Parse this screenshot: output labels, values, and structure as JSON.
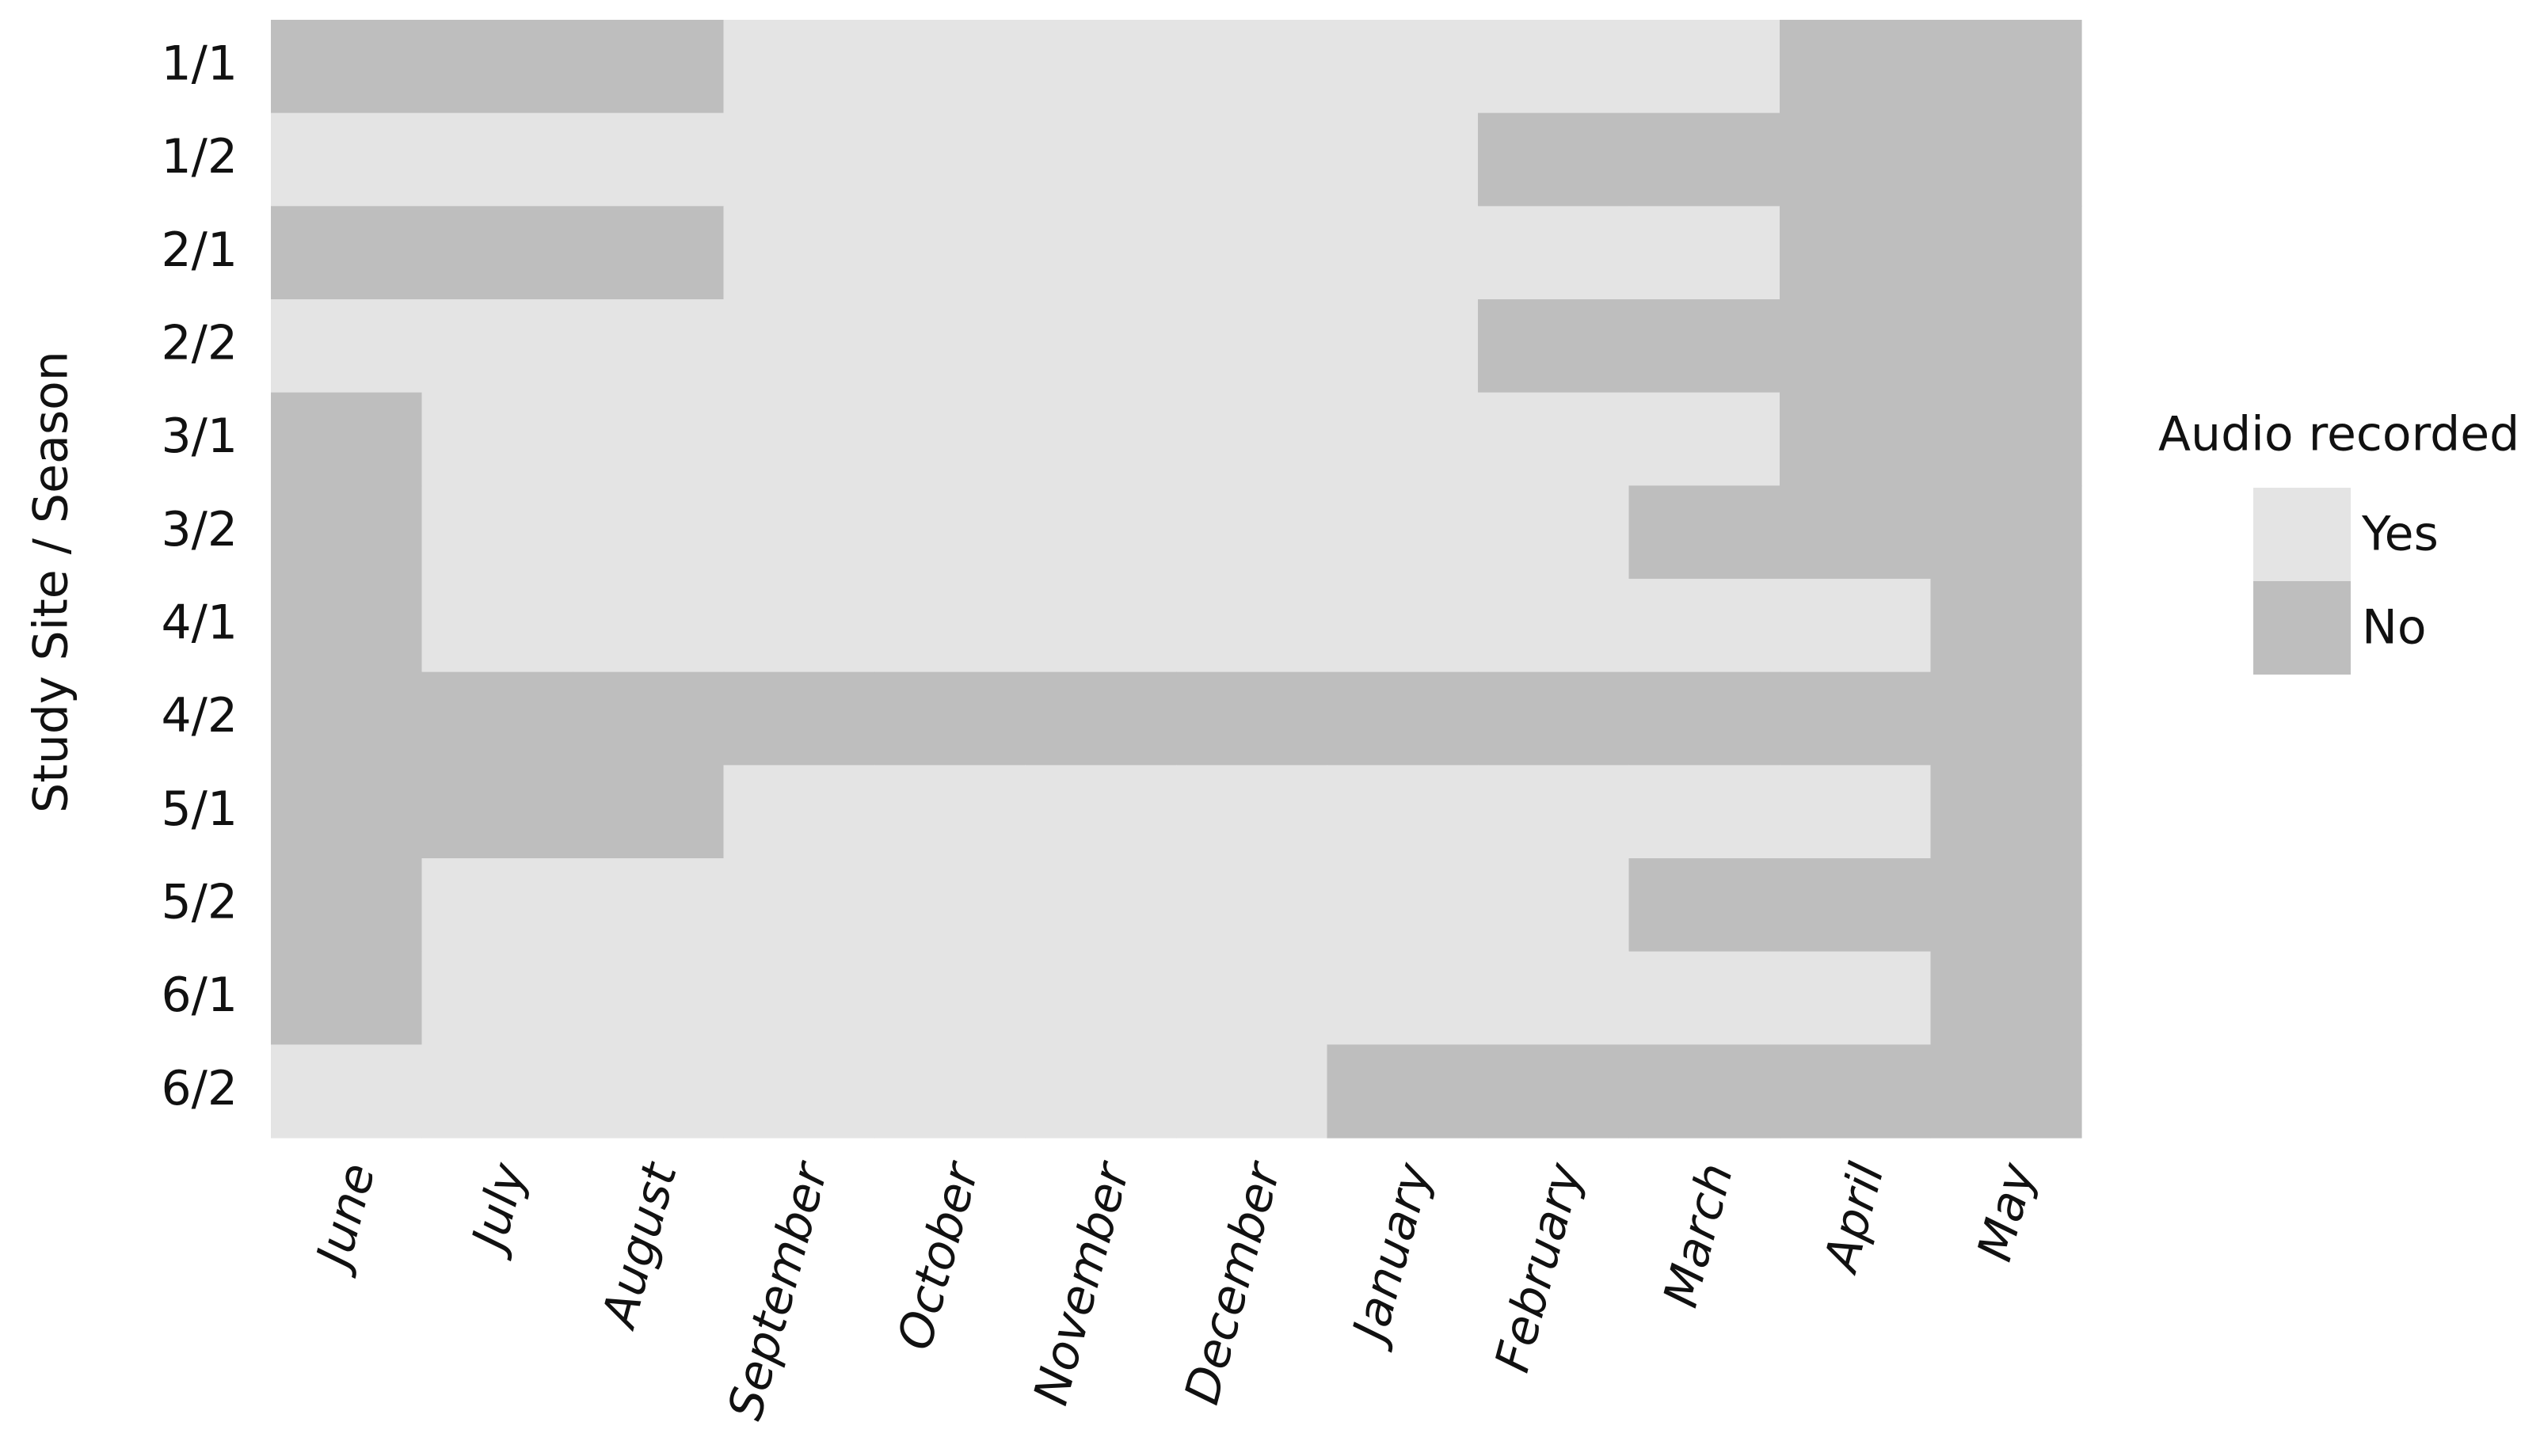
{
  "chart_data": {
    "type": "heatmap",
    "y_label": "Study Site / Season",
    "columns": [
      "June",
      "July",
      "August",
      "September",
      "October",
      "November",
      "December",
      "January",
      "February",
      "March",
      "April",
      "May"
    ],
    "rows": [
      "1/1",
      "1/2",
      "2/1",
      "2/2",
      "3/1",
      "3/2",
      "4/1",
      "4/2",
      "5/1",
      "5/2",
      "6/1",
      "6/2"
    ],
    "values": [
      [
        0,
        0,
        0,
        1,
        1,
        1,
        1,
        1,
        1,
        1,
        0,
        0
      ],
      [
        1,
        1,
        1,
        1,
        1,
        1,
        1,
        1,
        0,
        0,
        0,
        0
      ],
      [
        0,
        0,
        0,
        1,
        1,
        1,
        1,
        1,
        1,
        1,
        0,
        0
      ],
      [
        1,
        1,
        1,
        1,
        1,
        1,
        1,
        1,
        0,
        0,
        0,
        0
      ],
      [
        0,
        1,
        1,
        1,
        1,
        1,
        1,
        1,
        1,
        1,
        0,
        0
      ],
      [
        0,
        1,
        1,
        1,
        1,
        1,
        1,
        1,
        1,
        0,
        0,
        0
      ],
      [
        0,
        1,
        1,
        1,
        1,
        1,
        1,
        1,
        1,
        1,
        1,
        0
      ],
      [
        0,
        0,
        0,
        0,
        0,
        0,
        0,
        0,
        0,
        0,
        0,
        0
      ],
      [
        0,
        0,
        0,
        1,
        1,
        1,
        1,
        1,
        1,
        1,
        1,
        0
      ],
      [
        0,
        1,
        1,
        1,
        1,
        1,
        1,
        1,
        1,
        0,
        0,
        0
      ],
      [
        0,
        1,
        1,
        1,
        1,
        1,
        1,
        1,
        1,
        1,
        1,
        0
      ],
      [
        1,
        1,
        1,
        1,
        1,
        1,
        1,
        0,
        0,
        0,
        0,
        0
      ]
    ],
    "legend": {
      "title": "Audio recorded",
      "entries": [
        {
          "label": "Yes",
          "value": 1,
          "color": "#e4e4e4"
        },
        {
          "label": "No",
          "value": 0,
          "color": "#bebebe"
        }
      ]
    }
  }
}
